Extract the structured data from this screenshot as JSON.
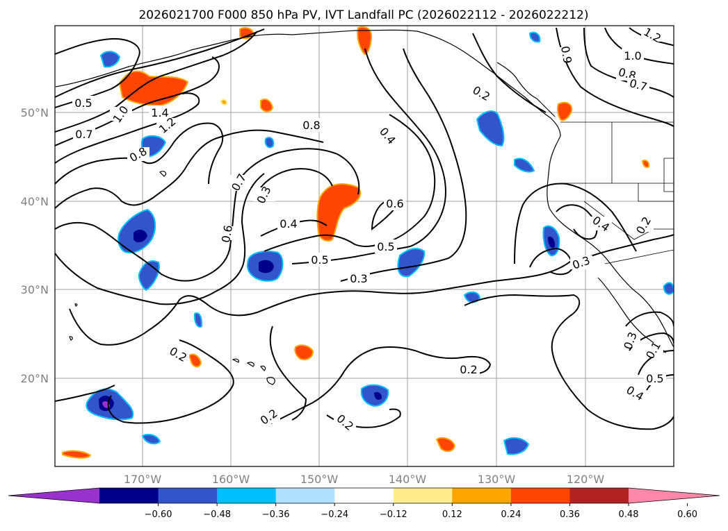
{
  "title": "2026021700 F000 850 hPa PV, IVT Landfall PC (2026022112 - 2026022212)",
  "lat_labels": [
    "50°N",
    "40°N",
    "30°N",
    "20°N"
  ],
  "lon_labels": [
    "170°W",
    "160°W",
    "150°W",
    "140°W",
    "130°W",
    "120°W"
  ],
  "colorbar": {
    "ticks": [
      "−0.60",
      "−0.48",
      "−0.36",
      "−0.24",
      "−0.12",
      "0.12",
      "0.24",
      "0.36",
      "0.48",
      "0.60"
    ],
    "colors": [
      "#9932cc",
      "#00008b",
      "#3355cc",
      "#00bfff",
      "#b0e2ff",
      "#ffffff",
      "#ffec8b",
      "#ffa500",
      "#ff4500",
      "#b22222",
      "#ff88aa"
    ]
  },
  "contour_labels": [
    "0.5",
    "0.7",
    "1.0",
    "1.4",
    "1.2",
    "0.8",
    "0.8",
    "0.7",
    "0.6",
    "0.3",
    "0.4",
    "0.5",
    "0.3",
    "0.4",
    "0.6",
    "0.5",
    "0.2",
    "0.2",
    "0.2",
    "0.3",
    "0.4",
    "0.5",
    "0.4",
    "0.2",
    "1.2",
    "1.0",
    "0.8",
    "0.7",
    "0.9",
    "0.3",
    "0.1",
    "0.2",
    "0.2"
  ]
}
